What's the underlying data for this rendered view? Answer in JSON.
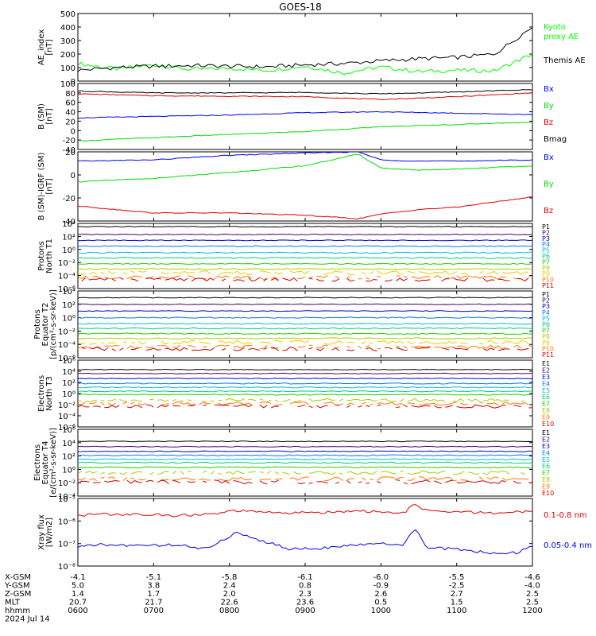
{
  "title": "GOES-18",
  "x_ticks": [
    "0600",
    "0700",
    "0800",
    "0900",
    "1000",
    "1100",
    "1200"
  ],
  "orbit": {
    "rows": [
      {
        "label": "X-GSM",
        "values": [
          "-4.1",
          "-5.1",
          "-5.8",
          "-6.1",
          "-6.0",
          "-5.5",
          "-4.6"
        ]
      },
      {
        "label": "Y-GSM",
        "values": [
          "5.0",
          "3.8",
          "2.4",
          "0.8",
          "-0.9",
          "-2.5",
          "-4.0"
        ]
      },
      {
        "label": "Z-GSM",
        "values": [
          "1.4",
          "1.7",
          "2.0",
          "2.3",
          "2.6",
          "2.7",
          "2.5"
        ]
      },
      {
        "label": "MLT",
        "values": [
          "20.7",
          "21.7",
          "22.6",
          "23.6",
          "0.5",
          "1.5",
          "2.5"
        ]
      },
      {
        "label": "hhmm",
        "values": [
          "0600",
          "0700",
          "0800",
          "0900",
          "1000",
          "1100",
          "1200"
        ]
      }
    ],
    "date": "2024 Jul 14"
  },
  "chart_data": [
    {
      "type": "line",
      "ylabel": [
        "AE_index",
        "[nT]"
      ],
      "ylim": [
        0,
        500
      ],
      "ticks": [
        "500",
        "400",
        "300",
        "200",
        "100",
        "0"
      ],
      "x": [
        6,
        6.5,
        7,
        7.5,
        8,
        8.5,
        9,
        9.5,
        10,
        10.5,
        11,
        11.5,
        12
      ],
      "series": [
        {
          "name": "Kyoto proxy AE",
          "name_lines": [
            "Kyoto",
            "proxy AE"
          ],
          "color": "#00ff00",
          "values": [
            130,
            90,
            120,
            85,
            95,
            80,
            110,
            60,
            105,
            70,
            80,
            75,
            200
          ]
        },
        {
          "name": "Themis AE",
          "color": "#000000",
          "values": [
            80,
            100,
            110,
            115,
            110,
            105,
            120,
            130,
            150,
            165,
            175,
            200,
            400
          ]
        }
      ]
    },
    {
      "type": "line",
      "ylabel": [
        "B (SM)",
        "[nT]"
      ],
      "ylim": [
        -40,
        100
      ],
      "ticks": [
        "100",
        "80",
        "60",
        "40",
        "20",
        "0",
        "-20",
        "-40"
      ],
      "x": [
        6,
        7,
        8,
        9,
        10,
        11,
        12
      ],
      "series": [
        {
          "name": "Bx",
          "color": "#0000ff",
          "values": [
            27,
            30,
            33,
            38,
            40,
            37,
            34
          ]
        },
        {
          "name": "By",
          "color": "#00dd00",
          "values": [
            -22,
            -15,
            -8,
            -2,
            8,
            13,
            18
          ]
        },
        {
          "name": "Bz",
          "color": "#dd0000",
          "values": [
            78,
            74,
            73,
            72,
            66,
            72,
            80
          ]
        },
        {
          "name": "Bmag",
          "color": "#000000",
          "values": [
            84,
            80,
            80,
            81,
            78,
            82,
            87
          ]
        }
      ]
    },
    {
      "type": "line",
      "ylabel": [
        "B (SM)-IGRF (SM)",
        "[nT]"
      ],
      "ylim": [
        -40,
        20
      ],
      "ticks": [
        "20",
        "0",
        "-20",
        "-40"
      ],
      "x": [
        6,
        7,
        8,
        9,
        9.7,
        10,
        10.5,
        11,
        12
      ],
      "series": [
        {
          "name": "Bx",
          "color": "#0000ff",
          "values": [
            12,
            13,
            17,
            19,
            20,
            13,
            12,
            12,
            13
          ]
        },
        {
          "name": "By",
          "color": "#00dd00",
          "values": [
            -6,
            -3,
            2,
            8,
            18,
            6,
            4,
            5,
            8
          ]
        },
        {
          "name": "Bz",
          "color": "#dd0000",
          "values": [
            -27,
            -33,
            -33,
            -35,
            -38,
            -34,
            -30,
            -28,
            -19
          ]
        }
      ]
    },
    {
      "type": "line",
      "log": true,
      "ylabel": [
        "Protons",
        "North T1"
      ],
      "ticks": [
        "10⁴",
        "10²",
        "10⁰",
        "10⁻²",
        "10⁻⁴",
        "10⁻⁶"
      ],
      "ylim_exp": [
        -6,
        4
      ],
      "channels": [
        "P1",
        "P2",
        "P3",
        "P4",
        "P5",
        "P6",
        "P7",
        "P8",
        "P9",
        "P10",
        "P11"
      ],
      "levels": [
        3.5,
        2.3,
        1.4,
        0.5,
        -0.5,
        -1.3,
        -2.2,
        -3.0,
        -3.6,
        -4.3,
        -4.6
      ],
      "colors": [
        "#000000",
        "#440066",
        "#0000cc",
        "#0077ff",
        "#00bbdd",
        "#00cc77",
        "#22cc00",
        "#aacc00",
        "#eecc00",
        "#ff7700",
        "#cc0000"
      ]
    },
    {
      "type": "line",
      "log": true,
      "ylabel": [
        "Protons",
        "Equator T2",
        "[p/(cm²-s-sr-keV)]"
      ],
      "ticks": [
        "10⁴",
        "10²",
        "10⁰",
        "10⁻²",
        "10⁻⁴",
        "10⁻⁶"
      ],
      "ylim_exp": [
        -6,
        4
      ],
      "channels": [
        "P1",
        "P2",
        "P3",
        "P4",
        "P5",
        "P6",
        "P7",
        "P8",
        "P9",
        "P10",
        "P11"
      ],
      "levels": [
        3.0,
        2.0,
        1.0,
        0.0,
        -0.9,
        -1.6,
        -2.4,
        -3.1,
        -3.7,
        -4.4,
        -4.7
      ],
      "colors": [
        "#000000",
        "#440066",
        "#0000cc",
        "#0077ff",
        "#00bbdd",
        "#00cc77",
        "#22cc00",
        "#aacc00",
        "#eecc00",
        "#ff7700",
        "#cc0000"
      ]
    },
    {
      "type": "line",
      "log": true,
      "ylabel": [
        "Electrons",
        "North T3"
      ],
      "ticks": [
        "10⁶",
        "10⁴",
        "10²",
        "10⁰",
        "10⁻²",
        "10⁻⁴",
        "10⁻⁶"
      ],
      "ylim_exp": [
        -6,
        6
      ],
      "channels": [
        "E1",
        "E2",
        "E3",
        "E4",
        "E5",
        "E6",
        "E7",
        "E8",
        "E9",
        "E10"
      ],
      "levels": [
        4.3,
        3.6,
        2.7,
        1.8,
        1.1,
        0.4,
        -0.2,
        -1.2,
        -1.8,
        -2.3
      ],
      "colors": [
        "#000000",
        "#440066",
        "#0000cc",
        "#0077ff",
        "#00bbdd",
        "#00cc77",
        "#22cc00",
        "#aacc00",
        "#ff7700",
        "#cc0000"
      ]
    },
    {
      "type": "line",
      "log": true,
      "ylabel": [
        "Electrons",
        "Equator T4",
        "[e/(cm²-s-sr-keV)]"
      ],
      "ticks": [
        "10⁶",
        "10⁴",
        "10²",
        "10⁰",
        "10⁻²",
        "10⁻⁴"
      ],
      "ylim_exp": [
        -4,
        6
      ],
      "channels": [
        "E1",
        "E2",
        "E3",
        "E4",
        "E5",
        "E6",
        "E7",
        "E8",
        "E9",
        "E10"
      ],
      "levels": [
        4.2,
        3.4,
        2.7,
        2.1,
        1.5,
        1.0,
        0.3,
        -0.5,
        -1.4,
        -1.9
      ],
      "colors": [
        "#000000",
        "#440066",
        "#0000cc",
        "#0077ff",
        "#00bbdd",
        "#00cc77",
        "#22cc00",
        "#aacc00",
        "#ff7700",
        "#cc0000"
      ]
    },
    {
      "type": "line",
      "log": true,
      "ylabel": [
        "Xray flux",
        "[W/m2]"
      ],
      "ticks": [
        "10⁻⁵",
        "10⁻⁶",
        "10⁻⁷",
        "10⁻⁸"
      ],
      "ylim_exp": [
        -8,
        -5
      ],
      "x": [
        6,
        6.3,
        6.8,
        7.3,
        7.7,
        8.1,
        8.4,
        8.8,
        9.2,
        9.6,
        10,
        10.3,
        10.45,
        10.6,
        11,
        11.5,
        11.8,
        12
      ],
      "series": [
        {
          "name": "0.1-0.8 nm",
          "color": "#dd0000",
          "exp": [
            -5.75,
            -5.7,
            -5.72,
            -5.75,
            -5.72,
            -5.55,
            -5.6,
            -5.65,
            -5.62,
            -5.55,
            -5.6,
            -5.65,
            -5.25,
            -5.55,
            -5.6,
            -5.65,
            -5.6,
            -5.55
          ]
        },
        {
          "name": "0.05-0.4 nm",
          "color": "#0000ee",
          "exp": [
            -7.15,
            -7.05,
            -7.1,
            -7.05,
            -7.25,
            -6.5,
            -6.85,
            -7.25,
            -7.2,
            -7.1,
            -7.0,
            -7.05,
            -6.3,
            -7.2,
            -7.25,
            -7.45,
            -7.4,
            -7.1
          ]
        }
      ]
    }
  ]
}
